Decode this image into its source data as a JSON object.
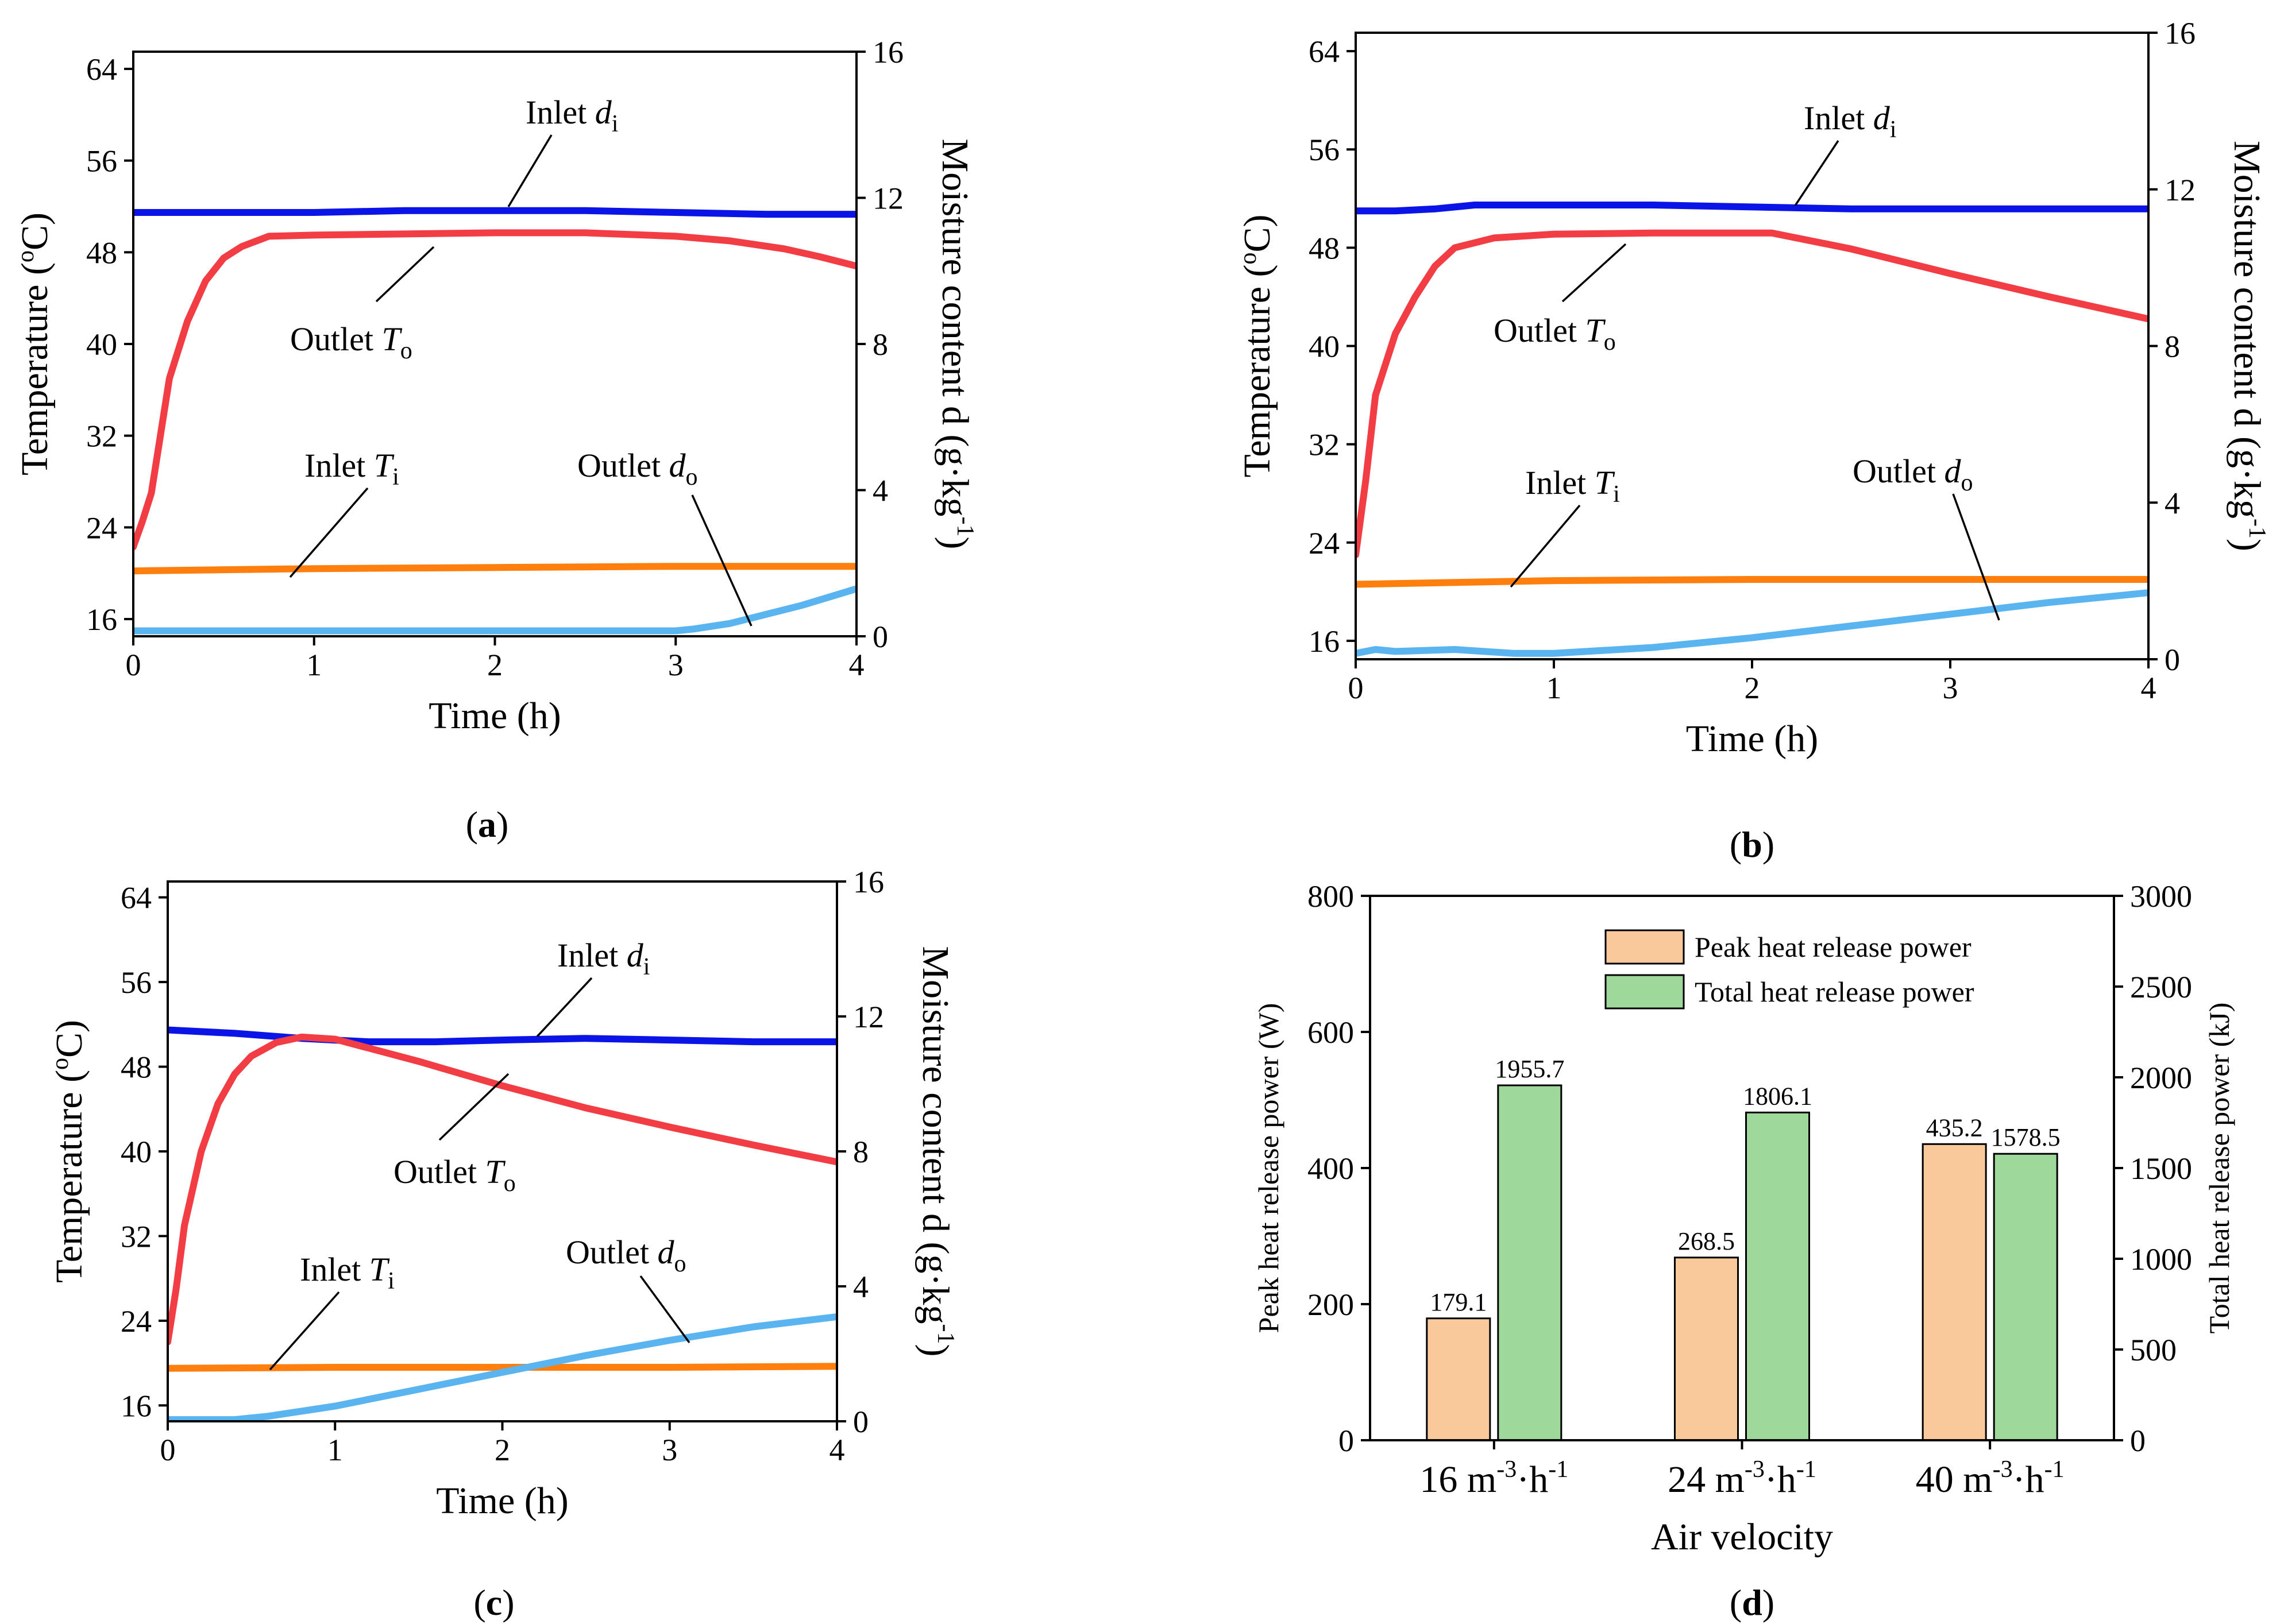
{
  "colors": {
    "inlet_d": "#0b14e6",
    "outlet_T": "#f23d45",
    "inlet_T": "#ff7f0e",
    "outlet_d": "#5ab4ef",
    "peak_bar": "#f9c89b",
    "total_bar": "#9fd89b"
  },
  "chart_data": [
    {
      "panel": "a",
      "panel_label": "(a)",
      "type": "line",
      "xlabel": "Time  (h)",
      "ylabel_left": "Temperature (oC)",
      "ylabel_right": "Moisture content d (g·kg-1)",
      "xlim": [
        0,
        4
      ],
      "ylim_left": [
        14.5,
        65.5
      ],
      "ylim_right": [
        0,
        16
      ],
      "xticks": [
        "0",
        "1",
        "2",
        "3",
        "4"
      ],
      "yticks_left": [
        "16",
        "24",
        "32",
        "40",
        "48",
        "56",
        "64"
      ],
      "yticks_right": [
        "0",
        "4",
        "8",
        "12",
        "16"
      ],
      "series": [
        {
          "name": "Inlet d_i",
          "axis": "right",
          "color_key": "inlet_d",
          "x": [
            0,
            0.5,
            1,
            1.5,
            2,
            2.5,
            3,
            3.5,
            4
          ],
          "y": [
            11.6,
            11.6,
            11.6,
            11.65,
            11.65,
            11.65,
            11.6,
            11.55,
            11.55
          ]
        },
        {
          "name": "Outlet T_o",
          "axis": "left",
          "color_key": "outlet_T",
          "x": [
            0,
            0.05,
            0.1,
            0.15,
            0.2,
            0.3,
            0.4,
            0.5,
            0.6,
            0.75,
            1,
            1.5,
            2,
            2.5,
            3,
            3.3,
            3.6,
            3.8,
            4
          ],
          "y": [
            22.3,
            24.5,
            27,
            32,
            37,
            42,
            45.5,
            47.5,
            48.5,
            49.4,
            49.5,
            49.6,
            49.7,
            49.7,
            49.4,
            49.0,
            48.3,
            47.6,
            46.8
          ]
        },
        {
          "name": "Inlet T_i",
          "axis": "left",
          "color_key": "inlet_T",
          "x": [
            0,
            1,
            2,
            3,
            4
          ],
          "y": [
            20.2,
            20.4,
            20.5,
            20.6,
            20.6
          ]
        },
        {
          "name": "Outlet d_o",
          "axis": "right",
          "color_key": "outlet_d",
          "x": [
            0,
            1,
            2,
            3,
            3.1,
            3.3,
            3.5,
            3.7,
            4
          ],
          "y": [
            0.15,
            0.15,
            0.15,
            0.15,
            0.2,
            0.35,
            0.6,
            0.85,
            1.3
          ]
        }
      ],
      "labels": {
        "inlet_d": {
          "name": "Inlet ",
          "var": "d",
          "sub": "i"
        },
        "outlet_T": {
          "name": "Outlet ",
          "var": "T",
          "sub": "o"
        },
        "inlet_T": {
          "name": "Inlet ",
          "var": "T",
          "sub": "i"
        },
        "outlet_d": {
          "name": "Outlet ",
          "var": "d",
          "sub": "o"
        }
      }
    },
    {
      "panel": "b",
      "panel_label": "(b)",
      "type": "line",
      "xlabel": "Time  (h)",
      "ylabel_left": "Temperature (oC)",
      "ylabel_right": "Moisture content d (g·kg-1)",
      "xlim": [
        0,
        4
      ],
      "ylim_left": [
        14.5,
        65.5
      ],
      "ylim_right": [
        0,
        16
      ],
      "xticks": [
        "0",
        "1",
        "2",
        "3",
        "4"
      ],
      "yticks_left": [
        "16",
        "24",
        "32",
        "40",
        "48",
        "56",
        "64"
      ],
      "yticks_right": [
        "0",
        "4",
        "8",
        "12",
        "16"
      ],
      "series": [
        {
          "name": "Inlet d_i",
          "axis": "right",
          "color_key": "inlet_d",
          "x": [
            0,
            0.2,
            0.4,
            0.6,
            1,
            1.5,
            2,
            2.5,
            3,
            3.5,
            4
          ],
          "y": [
            11.45,
            11.45,
            11.5,
            11.6,
            11.6,
            11.6,
            11.55,
            11.5,
            11.5,
            11.5,
            11.5
          ]
        },
        {
          "name": "Outlet T_o",
          "axis": "left",
          "color_key": "outlet_T",
          "x": [
            0,
            0.05,
            0.1,
            0.2,
            0.3,
            0.4,
            0.5,
            0.7,
            1,
            1.5,
            2,
            2.1,
            2.5,
            3,
            3.5,
            4
          ],
          "y": [
            23,
            29,
            36,
            41,
            44,
            46.5,
            48,
            48.8,
            49.1,
            49.2,
            49.2,
            49.2,
            47.9,
            45.9,
            44.0,
            42.2
          ]
        },
        {
          "name": "Inlet T_i",
          "axis": "left",
          "color_key": "inlet_T",
          "x": [
            0,
            1,
            2,
            3,
            4
          ],
          "y": [
            20.6,
            20.9,
            21.0,
            21.0,
            21.0
          ]
        },
        {
          "name": "Outlet d_o",
          "axis": "right",
          "color_key": "outlet_d",
          "x": [
            0,
            0.1,
            0.2,
            0.5,
            0.8,
            1.0,
            1.5,
            2,
            2.5,
            3,
            3.5,
            4
          ],
          "y": [
            0.15,
            0.25,
            0.2,
            0.25,
            0.15,
            0.15,
            0.3,
            0.55,
            0.85,
            1.15,
            1.45,
            1.7
          ]
        }
      ],
      "labels": {
        "inlet_d": {
          "name": "Inlet ",
          "var": "d",
          "sub": "i"
        },
        "outlet_T": {
          "name": "Outlet ",
          "var": "T",
          "sub": "o"
        },
        "inlet_T": {
          "name": "Inlet ",
          "var": "T",
          "sub": "i"
        },
        "outlet_d": {
          "name": "Outlet ",
          "var": "d",
          "sub": "o"
        }
      }
    },
    {
      "panel": "c",
      "panel_label": "(c)",
      "type": "line",
      "xlabel": "Time  (h)",
      "ylabel_left": "Temperature (oC)",
      "ylabel_right": "Moisture content d (g·kg-1)",
      "xlim": [
        0,
        4
      ],
      "ylim_left": [
        14.5,
        65.5
      ],
      "ylim_right": [
        0,
        16
      ],
      "xticks": [
        "0",
        "1",
        "2",
        "3",
        "4"
      ],
      "yticks_left": [
        "16",
        "24",
        "32",
        "40",
        "48",
        "56",
        "64"
      ],
      "yticks_right": [
        "0",
        "4",
        "8",
        "12",
        "16"
      ],
      "series": [
        {
          "name": "Inlet d_i",
          "axis": "right",
          "color_key": "inlet_d",
          "x": [
            0,
            0.4,
            0.8,
            1.2,
            1.6,
            2,
            2.5,
            3,
            3.5,
            4
          ],
          "y": [
            11.6,
            11.5,
            11.35,
            11.25,
            11.25,
            11.3,
            11.35,
            11.3,
            11.25,
            11.25
          ]
        },
        {
          "name": "Outlet T_o",
          "axis": "left",
          "color_key": "outlet_T",
          "x": [
            0,
            0.05,
            0.1,
            0.2,
            0.3,
            0.4,
            0.5,
            0.65,
            0.8,
            1,
            1.5,
            2,
            2.5,
            3,
            3.5,
            4
          ],
          "y": [
            22,
            27,
            33,
            40,
            44.5,
            47.3,
            49,
            50.3,
            50.8,
            50.6,
            48.5,
            46.2,
            44.1,
            42.3,
            40.6,
            39
          ]
        },
        {
          "name": "Inlet T_i",
          "axis": "left",
          "color_key": "inlet_T",
          "x": [
            0,
            1,
            2,
            3,
            4
          ],
          "y": [
            19.5,
            19.6,
            19.6,
            19.6,
            19.7
          ]
        },
        {
          "name": "Outlet d_o",
          "axis": "right",
          "color_key": "outlet_d",
          "x": [
            0,
            0.2,
            0.4,
            0.6,
            0.8,
            1.0,
            1.5,
            2,
            2.5,
            3,
            3.5,
            4
          ],
          "y": [
            0.05,
            0.05,
            0.05,
            0.15,
            0.3,
            0.45,
            0.95,
            1.45,
            1.95,
            2.4,
            2.8,
            3.1
          ]
        }
      ],
      "labels": {
        "inlet_d": {
          "name": "Inlet ",
          "var": "d",
          "sub": "i"
        },
        "outlet_T": {
          "name": "Outlet ",
          "var": "T",
          "sub": "o"
        },
        "inlet_T": {
          "name": "Inlet ",
          "var": "T",
          "sub": "i"
        },
        "outlet_d": {
          "name": "Outlet ",
          "var": "d",
          "sub": "o"
        }
      }
    },
    {
      "panel": "d",
      "panel_label": "(d)",
      "type": "bar",
      "xlabel": "Air velocity",
      "ylabel_left": "Peak heat release power (W)",
      "ylabel_right": "Total heat release power (kJ)",
      "categories": [
        {
          "base": "16 m",
          "sup1": "-3",
          "mid": "·h",
          "sup2": "-1"
        },
        {
          "base": "24 m",
          "sup1": "-3",
          "mid": "·h",
          "sup2": "-1"
        },
        {
          "base": "40 m",
          "sup1": "-3",
          "mid": "·h",
          "sup2": "-1"
        }
      ],
      "ylim_left": [
        0,
        800
      ],
      "ylim_right": [
        0,
        3000
      ],
      "yticks_left": [
        "0",
        "200",
        "400",
        "600",
        "800"
      ],
      "yticks_right": [
        "0",
        "500",
        "1000",
        "1500",
        "2000",
        "2500",
        "3000"
      ],
      "series": [
        {
          "name": "Peak heat release power",
          "axis": "left",
          "color_key": "peak_bar",
          "values": [
            179.1,
            268.5,
            435.2
          ],
          "value_labels": [
            "179.1",
            "268.5",
            "435.2"
          ]
        },
        {
          "name": "Total heat release power",
          "axis": "right",
          "color_key": "total_bar",
          "values": [
            1955.7,
            1806.1,
            1578.5
          ],
          "value_labels": [
            "1955.7",
            "1806.1",
            "1578.5"
          ]
        }
      ]
    }
  ]
}
